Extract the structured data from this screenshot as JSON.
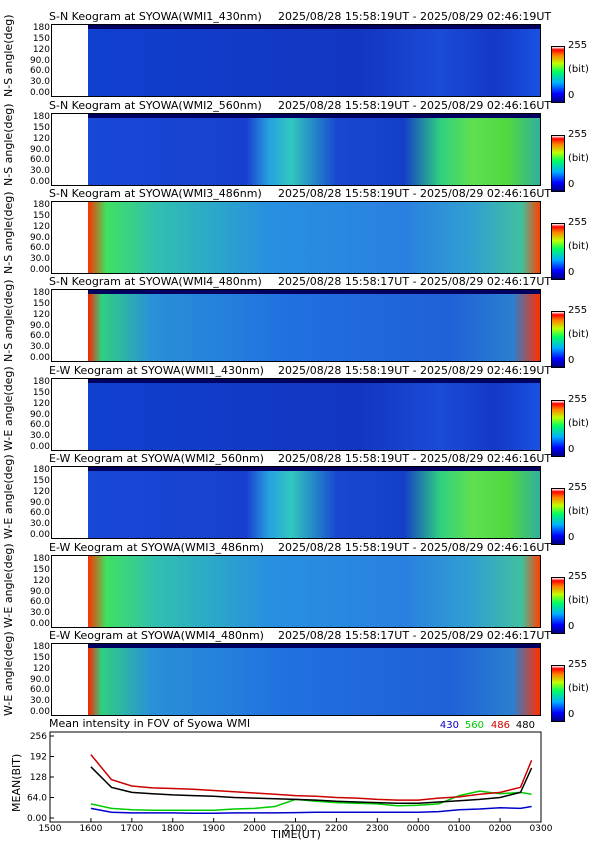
{
  "keograms": [
    {
      "title": "S-N Keogram at SYOWA(WMI1_430nm)",
      "time_range": "2025/08/28 15:58:19UT - 2025/08/29 02:46:19UT",
      "ylabel": "N-S angle(deg)",
      "cbar": {
        "max": "255",
        "unit": "(bit)",
        "min": "0"
      },
      "palette": "faint_blue"
    },
    {
      "title": "S-N Keogram at SYOWA(WMI2_560nm)",
      "time_range": "2025/08/28 15:58:19UT - 2025/08/29 02:46:16UT",
      "ylabel": "N-S angle(deg)",
      "cbar": {
        "max": "255",
        "unit": "(bit)",
        "min": "0"
      },
      "palette": "green_aurora"
    },
    {
      "title": "S-N Keogram at SYOWA(WMI3_486nm)",
      "time_range": "2025/08/28 15:58:19UT - 2025/08/29 02:46:16UT",
      "ylabel": "N-S angle(deg)",
      "cbar": {
        "max": "255",
        "unit": "(bit)",
        "min": "0"
      },
      "palette": "bright_green"
    },
    {
      "title": "S-N Keogram at SYOWA(WMI4_480nm)",
      "time_range": "2025/08/28 15:58:17UT - 2025/08/29 02:46:17UT",
      "ylabel": "N-S angle(deg)",
      "cbar": {
        "max": "255",
        "unit": "(bit)",
        "min": "0"
      },
      "palette": "mid_green"
    },
    {
      "title": "E-W Keogram at SYOWA(WMI1_430nm)",
      "time_range": "2025/08/28 15:58:19UT - 2025/08/29 02:46:19UT",
      "ylabel": "W-E angle(deg)",
      "cbar": {
        "max": "255",
        "unit": "(bit)",
        "min": "0"
      },
      "palette": "faint_blue"
    },
    {
      "title": "E-W Keogram at SYOWA(WMI2_560nm)",
      "time_range": "2025/08/28 15:58:19UT - 2025/08/29 02:46:16UT",
      "ylabel": "W-E angle(deg)",
      "cbar": {
        "max": "255",
        "unit": "(bit)",
        "min": "0"
      },
      "palette": "green_aurora"
    },
    {
      "title": "E-W Keogram at SYOWA(WMI3_486nm)",
      "time_range": "2025/08/28 15:58:19UT - 2025/08/29 02:46:16UT",
      "ylabel": "W-E angle(deg)",
      "cbar": {
        "max": "255",
        "unit": "(bit)",
        "min": "0"
      },
      "palette": "bright_green"
    },
    {
      "title": "E-W Keogram at SYOWA(WMI4_480nm)",
      "time_range": "2025/08/28 15:58:17UT - 2025/08/29 02:46:17UT",
      "ylabel": "W-E angle(deg)",
      "cbar": {
        "max": "255",
        "unit": "(bit)",
        "min": "0"
      },
      "palette": "mid_green"
    }
  ],
  "angle_ticks": [
    "180",
    "150",
    "120",
    "90.0",
    "60.0",
    "30.0",
    "0.00"
  ],
  "angle_ticks_short": [
    "180",
    "150",
    "120",
    "90.0",
    "60.0",
    "30.0",
    "0.00"
  ],
  "colors": {
    "430": "#0000cc",
    "560": "#00cc00",
    "486": "#cc0000",
    "480": "#000000"
  },
  "chart_data": {
    "type": "line",
    "title": "Mean intensity in FOV of Syowa WMI",
    "xlabel": "TIME(UT)",
    "ylabel": "MEAN(BIT)",
    "xticks": [
      "1500",
      "1600",
      "1700",
      "1800",
      "1900",
      "2000",
      "2100",
      "2200",
      "2300",
      "0000",
      "0100",
      "0200",
      "0300"
    ],
    "yticks": [
      "256",
      "192",
      "128",
      "64.0",
      "0.00"
    ],
    "ylim": [
      0,
      256
    ],
    "x_hours": [
      16.0,
      16.5,
      17.0,
      17.5,
      18.0,
      18.5,
      19.0,
      19.5,
      20.0,
      20.5,
      21.0,
      21.5,
      22.0,
      22.5,
      23.0,
      23.5,
      24.0,
      24.5,
      25.0,
      25.5,
      26.0,
      26.5,
      26.77
    ],
    "series": [
      {
        "name": "430",
        "color": "#0000cc",
        "values": [
          30,
          18,
          16,
          16,
          16,
          15,
          15,
          16,
          16,
          16,
          17,
          18,
          18,
          18,
          18,
          18,
          18,
          20,
          26,
          28,
          32,
          30,
          36
        ]
      },
      {
        "name": "560",
        "color": "#00cc00",
        "values": [
          44,
          30,
          26,
          24,
          24,
          24,
          24,
          28,
          30,
          36,
          58,
          52,
          48,
          46,
          44,
          38,
          40,
          44,
          70,
          84,
          76,
          80,
          74
        ]
      },
      {
        "name": "486",
        "color": "#cc0000",
        "values": [
          198,
          120,
          100,
          94,
          92,
          90,
          86,
          82,
          78,
          74,
          70,
          68,
          64,
          62,
          58,
          56,
          56,
          62,
          66,
          74,
          80,
          96,
          180
        ]
      },
      {
        "name": "480",
        "color": "#000000",
        "values": [
          160,
          96,
          80,
          76,
          72,
          70,
          68,
          64,
          62,
          60,
          58,
          56,
          52,
          50,
          48,
          46,
          46,
          50,
          54,
          58,
          64,
          80,
          156
        ]
      }
    ]
  }
}
